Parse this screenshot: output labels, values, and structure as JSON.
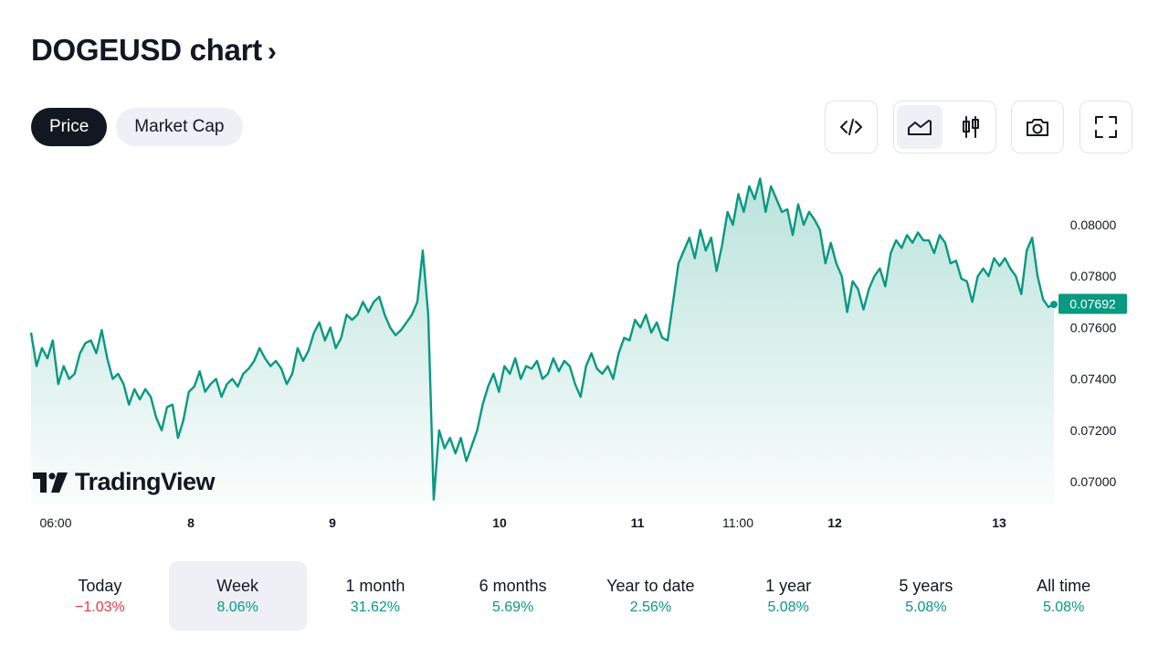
{
  "header": {
    "title": "DOGEUSD chart",
    "chevron": "›"
  },
  "mode_tabs": [
    {
      "label": "Price",
      "active": true
    },
    {
      "label": "Market Cap",
      "active": false
    }
  ],
  "toolbar": {
    "icons": [
      "embed-code-icon",
      "area-chart-icon",
      "candlestick-icon",
      "camera-icon",
      "fullscreen-icon"
    ],
    "selected": "area-chart-icon"
  },
  "colors": {
    "line": "#089981",
    "up": "#089981",
    "down": "#f23645",
    "accent_dark": "#131722"
  },
  "watermark": {
    "text": "TradingView"
  },
  "chart_data": {
    "type": "area",
    "symbol": "DOGEUSD",
    "x_tick_labels": [
      "06:00",
      "8",
      "9",
      "10",
      "11",
      "11:00",
      "12",
      "13"
    ],
    "y_tick_labels": [
      "0.08000",
      "0.07800",
      "0.07600",
      "0.07400",
      "0.07200",
      "0.07000"
    ],
    "ylim": [
      0.0692,
      0.082
    ],
    "last_price": "0.07692",
    "series": [
      {
        "values": [
          0.0758,
          0.0745,
          0.0752,
          0.0748,
          0.0755,
          0.0738,
          0.0745,
          0.074,
          0.0742,
          0.075,
          0.0754,
          0.0755,
          0.075,
          0.0759,
          0.0748,
          0.074,
          0.0742,
          0.0738,
          0.073,
          0.0736,
          0.0732,
          0.0736,
          0.0733,
          0.0725,
          0.072,
          0.0729,
          0.073,
          0.0717,
          0.0724,
          0.0735,
          0.0737,
          0.0743,
          0.0735,
          0.0738,
          0.074,
          0.0733,
          0.0738,
          0.074,
          0.0737,
          0.0742,
          0.0744,
          0.0747,
          0.0752,
          0.0748,
          0.0745,
          0.0747,
          0.0744,
          0.0738,
          0.0742,
          0.0752,
          0.0747,
          0.0751,
          0.0758,
          0.0762,
          0.0755,
          0.076,
          0.0752,
          0.0756,
          0.0765,
          0.0763,
          0.0765,
          0.077,
          0.0766,
          0.077,
          0.0772,
          0.0765,
          0.076,
          0.0757,
          0.0759,
          0.0762,
          0.0765,
          0.077,
          0.079,
          0.0765,
          0.0693,
          0.072,
          0.0713,
          0.0717,
          0.0711,
          0.0717,
          0.0708,
          0.0714,
          0.072,
          0.073,
          0.0737,
          0.0742,
          0.0735,
          0.0745,
          0.0742,
          0.0748,
          0.074,
          0.0745,
          0.0744,
          0.0747,
          0.074,
          0.0742,
          0.0748,
          0.0743,
          0.0747,
          0.0745,
          0.0738,
          0.0733,
          0.0745,
          0.075,
          0.0744,
          0.0742,
          0.0745,
          0.074,
          0.075,
          0.0756,
          0.0755,
          0.0763,
          0.076,
          0.0765,
          0.0758,
          0.0762,
          0.0756,
          0.0755,
          0.077,
          0.0785,
          0.079,
          0.0795,
          0.0787,
          0.0798,
          0.079,
          0.0795,
          0.0782,
          0.0792,
          0.0805,
          0.08,
          0.0812,
          0.0805,
          0.0815,
          0.081,
          0.0818,
          0.0805,
          0.0815,
          0.081,
          0.0805,
          0.0806,
          0.0796,
          0.0808,
          0.08,
          0.0805,
          0.0802,
          0.0798,
          0.0785,
          0.0793,
          0.0785,
          0.078,
          0.0766,
          0.0778,
          0.0775,
          0.0767,
          0.0775,
          0.078,
          0.0783,
          0.0776,
          0.0789,
          0.0794,
          0.0791,
          0.0796,
          0.0793,
          0.0797,
          0.0794,
          0.0794,
          0.0789,
          0.0796,
          0.0793,
          0.0785,
          0.0786,
          0.0779,
          0.0778,
          0.077,
          0.078,
          0.0783,
          0.078,
          0.0787,
          0.0784,
          0.0787,
          0.0783,
          0.078,
          0.0773,
          0.079,
          0.0795,
          0.078,
          0.0771,
          0.0768,
          0.0769
        ]
      }
    ]
  },
  "periods": [
    {
      "label": "Today",
      "change": "−1.03%",
      "direction": "down",
      "active": false
    },
    {
      "label": "Week",
      "change": "8.06%",
      "direction": "up",
      "active": true
    },
    {
      "label": "1 month",
      "change": "31.62%",
      "direction": "up",
      "active": false
    },
    {
      "label": "6 months",
      "change": "5.69%",
      "direction": "up",
      "active": false
    },
    {
      "label": "Year to date",
      "change": "2.56%",
      "direction": "up",
      "active": false
    },
    {
      "label": "1 year",
      "change": "5.08%",
      "direction": "up",
      "active": false
    },
    {
      "label": "5 years",
      "change": "5.08%",
      "direction": "up",
      "active": false
    },
    {
      "label": "All time",
      "change": "5.08%",
      "direction": "up",
      "active": false
    }
  ]
}
